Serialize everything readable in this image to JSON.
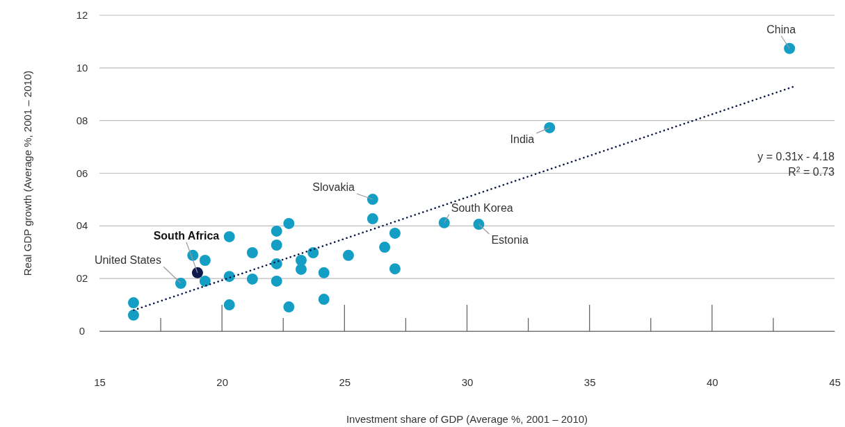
{
  "chart_data": {
    "type": "scatter",
    "xlabel": "Investment share of GDP (Average %, 2001 – 2010)",
    "ylabel": "Real GDP growth (Average %, 2001 – 2010)",
    "xlim": [
      15,
      45
    ],
    "xticks": [
      15,
      20,
      25,
      30,
      35,
      40,
      45
    ],
    "ylim": [
      0,
      12
    ],
    "yticks": [
      0,
      {
        "value": 2,
        "label": "02"
      },
      {
        "value": 4,
        "label": "04"
      },
      {
        "value": 6,
        "label": "06"
      },
      {
        "value": 8,
        "label": "08"
      },
      {
        "value": 10,
        "label": "10"
      },
      {
        "value": 12,
        "label": "12"
      }
    ],
    "grid": "y",
    "marker": "circle",
    "series": [
      {
        "color": "#149ec3",
        "x": [
          16.39,
          16.39,
          18.32,
          18.81,
          19.31,
          19.31,
          20.3,
          20.3,
          20.3,
          21.24,
          21.24,
          22.23,
          22.23,
          22.23,
          22.23,
          22.73,
          22.73,
          23.23,
          23.23,
          23.72,
          24.16,
          24.16,
          25.16,
          26.15,
          26.15,
          26.64,
          27.06,
          27.06,
          29.07,
          30.48,
          33.37,
          43.16
        ],
        "values": [
          1.08,
          0.61,
          1.82,
          2.88,
          2.69,
          1.9,
          3.59,
          2.08,
          1.0,
          2.98,
          1.98,
          3.8,
          3.27,
          2.56,
          1.9,
          4.09,
          0.92,
          2.69,
          2.35,
          2.98,
          2.22,
          1.21,
          2.88,
          5.01,
          4.27,
          3.19,
          3.72,
          2.37,
          4.12,
          4.06,
          7.73,
          10.74
        ]
      },
      {
        "color": "#0b1a4a",
        "x": [
          19.0
        ],
        "values": [
          2.22
        ]
      },
      {
        "type": "line",
        "color": "#0b1a4a",
        "line_style": "dotted",
        "marker": "none",
        "x": [
          16.4,
          43.3
        ],
        "values": [
          0.8,
          9.28
        ]
      }
    ],
    "annotations": [
      {
        "text": "China",
        "x": 43.16,
        "y": 10.74
      },
      {
        "text": "India",
        "x": 33.37,
        "y": 7.73
      },
      {
        "text": "Slovakia",
        "x": 26.15,
        "y": 5.01
      },
      {
        "text": "South Korea",
        "x": 29.07,
        "y": 4.12
      },
      {
        "text": "Estonia",
        "x": 30.48,
        "y": 4.06
      },
      {
        "text": "United States",
        "x": 18.32,
        "y": 1.82
      },
      {
        "text": "South Africa",
        "x": 19.0,
        "y": 2.22
      },
      "y = 0.31x - 4.18",
      "R$^{2}$ = 0.73"
    ]
  }
}
